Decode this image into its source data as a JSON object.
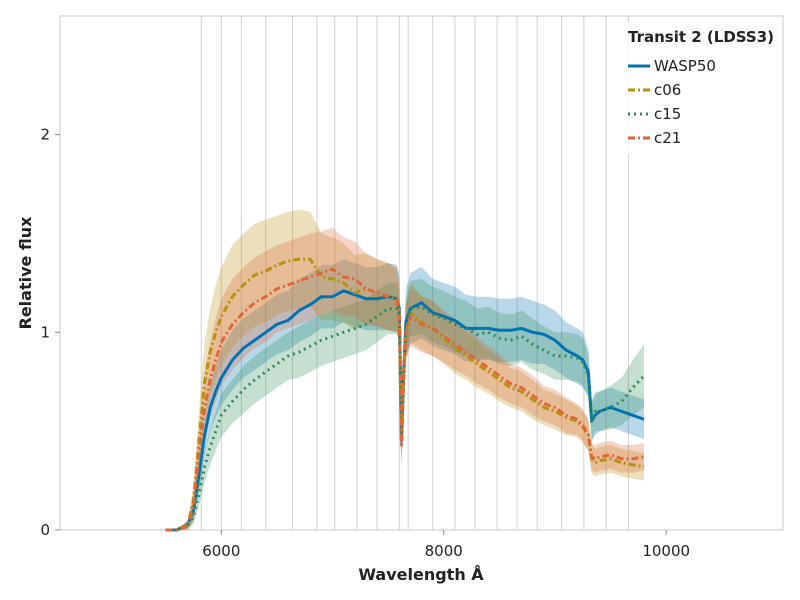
{
  "chart_data": {
    "type": "line",
    "title": "",
    "xlabel": "Wavelength Å",
    "ylabel": "Relative flux",
    "xlim": [
      4550,
      11050
    ],
    "ylim": [
      0,
      2.6
    ],
    "x_ticks": [
      6000,
      8000,
      10000
    ],
    "x_tick_labels": [
      "6000",
      "8000",
      "10000"
    ],
    "y_ticks": [
      0,
      1,
      2
    ],
    "y_tick_labels": [
      "0",
      "1",
      "2"
    ],
    "grid": false,
    "legend": {
      "title": "Transit 2 (LDSS3)",
      "position": "top-right"
    },
    "bin_edges": [
      5820,
      6000,
      6180,
      6400,
      6640,
      6860,
      7020,
      7220,
      7400,
      7600,
      7680,
      7900,
      8100,
      8280,
      8480,
      8660,
      8840,
      9060,
      9260,
      9460,
      9660
    ],
    "band_opacity": 0.28,
    "series": [
      {
        "name": "WASP50",
        "color": "#0072B2",
        "dash": "solid",
        "x": [
          5500,
          5600,
          5700,
          5750,
          5800,
          5850,
          5900,
          5950,
          6000,
          6100,
          6200,
          6300,
          6400,
          6500,
          6600,
          6700,
          6800,
          6900,
          7000,
          7100,
          7200,
          7300,
          7400,
          7500,
          7580,
          7600,
          7620,
          7640,
          7660,
          7700,
          7800,
          7900,
          8000,
          8100,
          8200,
          8300,
          8400,
          8500,
          8600,
          8700,
          8800,
          8900,
          9000,
          9100,
          9200,
          9250,
          9300,
          9330,
          9360,
          9400,
          9500,
          9600,
          9700,
          9800
        ],
        "y": [
          0.0,
          0.0,
          0.03,
          0.1,
          0.28,
          0.48,
          0.62,
          0.7,
          0.77,
          0.86,
          0.92,
          0.96,
          1.0,
          1.04,
          1.06,
          1.11,
          1.14,
          1.18,
          1.18,
          1.21,
          1.19,
          1.17,
          1.17,
          1.18,
          1.17,
          1.12,
          0.45,
          0.8,
          1.05,
          1.12,
          1.15,
          1.1,
          1.08,
          1.06,
          1.02,
          1.02,
          1.02,
          1.01,
          1.01,
          1.02,
          1.0,
          0.99,
          0.96,
          0.91,
          0.88,
          0.86,
          0.8,
          0.55,
          0.58,
          0.6,
          0.62,
          0.6,
          0.58,
          0.56
        ],
        "err": [
          0.0,
          0.0,
          0.02,
          0.05,
          0.08,
          0.1,
          0.12,
          0.13,
          0.14,
          0.15,
          0.15,
          0.15,
          0.15,
          0.15,
          0.15,
          0.16,
          0.16,
          0.16,
          0.16,
          0.16,
          0.16,
          0.16,
          0.16,
          0.17,
          0.17,
          0.17,
          0.12,
          0.15,
          0.17,
          0.18,
          0.18,
          0.17,
          0.17,
          0.17,
          0.17,
          0.16,
          0.16,
          0.16,
          0.16,
          0.16,
          0.16,
          0.15,
          0.15,
          0.14,
          0.14,
          0.14,
          0.12,
          0.1,
          0.1,
          0.1,
          0.1,
          0.1,
          0.1,
          0.1
        ]
      },
      {
        "name": "c06",
        "color": "#B8900C",
        "dash": "dashdot",
        "x": [
          5500,
          5600,
          5700,
          5750,
          5800,
          5850,
          5900,
          5950,
          6000,
          6100,
          6200,
          6300,
          6400,
          6500,
          6600,
          6700,
          6800,
          6900,
          7000,
          7100,
          7200,
          7300,
          7400,
          7500,
          7580,
          7600,
          7620,
          7640,
          7660,
          7700,
          7800,
          7900,
          8000,
          8100,
          8200,
          8300,
          8400,
          8500,
          8600,
          8700,
          8800,
          8900,
          9000,
          9100,
          9200,
          9250,
          9300,
          9330,
          9360,
          9400,
          9500,
          9600,
          9700,
          9800
        ],
        "y": [
          0.0,
          0.0,
          0.03,
          0.15,
          0.45,
          0.75,
          0.9,
          1.0,
          1.08,
          1.18,
          1.24,
          1.29,
          1.31,
          1.34,
          1.36,
          1.37,
          1.37,
          1.28,
          1.27,
          1.25,
          1.2,
          1.22,
          1.2,
          1.18,
          1.17,
          1.1,
          0.45,
          0.8,
          1.0,
          1.1,
          1.05,
          1.02,
          0.97,
          0.92,
          0.88,
          0.84,
          0.8,
          0.76,
          0.72,
          0.7,
          0.66,
          0.62,
          0.6,
          0.57,
          0.55,
          0.52,
          0.48,
          0.36,
          0.34,
          0.35,
          0.36,
          0.34,
          0.33,
          0.32
        ],
        "err": [
          0.0,
          0.0,
          0.02,
          0.08,
          0.15,
          0.2,
          0.22,
          0.24,
          0.25,
          0.26,
          0.26,
          0.26,
          0.26,
          0.25,
          0.25,
          0.25,
          0.24,
          0.22,
          0.21,
          0.2,
          0.19,
          0.18,
          0.17,
          0.17,
          0.16,
          0.15,
          0.1,
          0.12,
          0.14,
          0.15,
          0.14,
          0.14,
          0.13,
          0.13,
          0.12,
          0.12,
          0.11,
          0.11,
          0.1,
          0.1,
          0.1,
          0.09,
          0.09,
          0.09,
          0.08,
          0.08,
          0.08,
          0.07,
          0.07,
          0.07,
          0.07,
          0.07,
          0.07,
          0.07
        ]
      },
      {
        "name": "c15",
        "color": "#2E8B57",
        "dash": "dotted",
        "x": [
          5500,
          5600,
          5700,
          5750,
          5800,
          5850,
          5900,
          5950,
          6000,
          6100,
          6200,
          6300,
          6400,
          6500,
          6600,
          6700,
          6800,
          6900,
          7000,
          7100,
          7200,
          7300,
          7400,
          7500,
          7580,
          7600,
          7620,
          7640,
          7660,
          7700,
          7800,
          7900,
          8000,
          8100,
          8200,
          8300,
          8400,
          8500,
          8600,
          8700,
          8800,
          8900,
          9000,
          9100,
          9200,
          9250,
          9300,
          9330,
          9360,
          9400,
          9500,
          9600,
          9700,
          9800
        ],
        "y": [
          0.0,
          0.0,
          0.02,
          0.07,
          0.18,
          0.32,
          0.42,
          0.5,
          0.58,
          0.65,
          0.71,
          0.76,
          0.8,
          0.84,
          0.88,
          0.9,
          0.93,
          0.96,
          0.98,
          1.0,
          1.02,
          1.04,
          1.08,
          1.12,
          1.12,
          1.08,
          0.43,
          0.75,
          1.02,
          1.12,
          1.13,
          1.09,
          1.07,
          1.04,
          1.02,
          0.99,
          1.0,
          0.97,
          0.96,
          0.98,
          0.94,
          0.91,
          0.88,
          0.88,
          0.87,
          0.85,
          0.78,
          0.55,
          0.6,
          0.6,
          0.62,
          0.65,
          0.72,
          0.78
        ],
        "err": [
          0.0,
          0.0,
          0.02,
          0.04,
          0.06,
          0.08,
          0.09,
          0.1,
          0.11,
          0.11,
          0.12,
          0.12,
          0.12,
          0.12,
          0.12,
          0.13,
          0.13,
          0.13,
          0.13,
          0.13,
          0.13,
          0.13,
          0.13,
          0.13,
          0.13,
          0.13,
          0.1,
          0.12,
          0.14,
          0.14,
          0.14,
          0.14,
          0.14,
          0.14,
          0.14,
          0.13,
          0.13,
          0.13,
          0.13,
          0.13,
          0.13,
          0.12,
          0.12,
          0.12,
          0.12,
          0.12,
          0.11,
          0.1,
          0.1,
          0.1,
          0.11,
          0.12,
          0.14,
          0.16
        ]
      },
      {
        "name": "c21",
        "color": "#E0663A",
        "dash": "dashdot",
        "x": [
          5500,
          5600,
          5700,
          5750,
          5800,
          5850,
          5900,
          5950,
          6000,
          6100,
          6200,
          6300,
          6400,
          6500,
          6600,
          6700,
          6800,
          6900,
          7000,
          7100,
          7200,
          7300,
          7400,
          7500,
          7580,
          7600,
          7620,
          7640,
          7660,
          7700,
          7800,
          7900,
          8000,
          8100,
          8200,
          8300,
          8400,
          8500,
          8600,
          8700,
          8800,
          8900,
          9000,
          9100,
          9200,
          9250,
          9300,
          9330,
          9360,
          9400,
          9500,
          9600,
          9700,
          9800
        ],
        "y": [
          0.0,
          0.0,
          0.02,
          0.12,
          0.38,
          0.62,
          0.76,
          0.86,
          0.95,
          1.04,
          1.1,
          1.15,
          1.18,
          1.22,
          1.24,
          1.26,
          1.28,
          1.3,
          1.32,
          1.28,
          1.27,
          1.22,
          1.2,
          1.18,
          1.16,
          1.1,
          0.43,
          0.78,
          1.0,
          1.08,
          1.04,
          1.02,
          0.98,
          0.94,
          0.9,
          0.86,
          0.82,
          0.78,
          0.74,
          0.72,
          0.68,
          0.64,
          0.62,
          0.58,
          0.56,
          0.53,
          0.48,
          0.37,
          0.36,
          0.37,
          0.38,
          0.36,
          0.36,
          0.37
        ],
        "err": [
          0.0,
          0.0,
          0.02,
          0.07,
          0.13,
          0.17,
          0.19,
          0.21,
          0.22,
          0.23,
          0.23,
          0.23,
          0.23,
          0.22,
          0.22,
          0.22,
          0.22,
          0.21,
          0.21,
          0.2,
          0.19,
          0.18,
          0.17,
          0.17,
          0.16,
          0.15,
          0.1,
          0.12,
          0.14,
          0.15,
          0.14,
          0.14,
          0.13,
          0.13,
          0.12,
          0.12,
          0.11,
          0.11,
          0.1,
          0.1,
          0.1,
          0.09,
          0.09,
          0.09,
          0.08,
          0.08,
          0.08,
          0.07,
          0.07,
          0.07,
          0.07,
          0.07,
          0.07,
          0.07
        ]
      }
    ]
  }
}
